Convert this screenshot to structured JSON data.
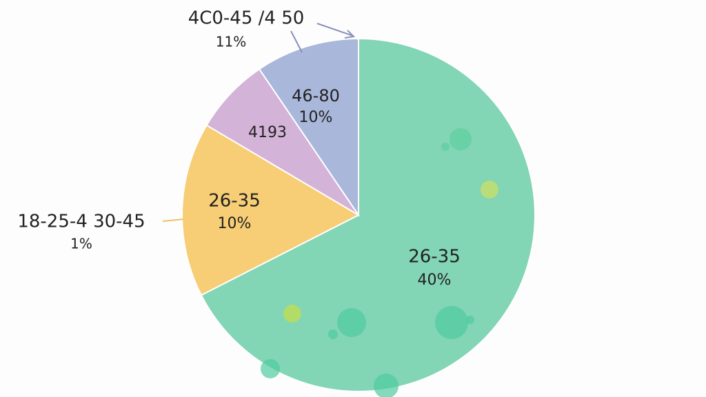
{
  "chart_data": {
    "type": "pie",
    "values": [
      67.5,
      16,
      7,
      9.5
    ],
    "colors": [
      "#82d5b5",
      "#f7cd75",
      "#d4b3d8",
      "#a9b7db"
    ],
    "annotations": [
      "26-35",
      "40%",
      "26-35",
      "10%",
      "4193",
      "46-80",
      "10%",
      "4C0-45 /4 50",
      "11%",
      "18-25-4 30-45",
      "1%"
    ]
  }
}
